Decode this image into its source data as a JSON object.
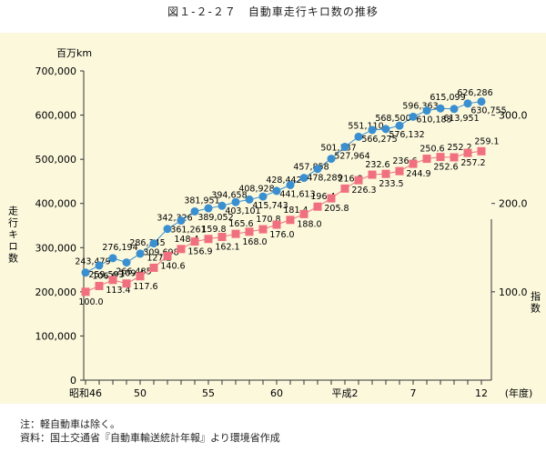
{
  "title": "図１-２-２７　自動車走行キロ数の推移",
  "notes": {
    "line1": "注：軽自動車は除く。",
    "line2": "資料：国土交通省『自動車輸送統計年報』より環境省作成"
  },
  "colors": {
    "background": "#fbf8dc",
    "series1": "#3a8fd0",
    "series2": "#f07080"
  },
  "chart_data": {
    "type": "line",
    "title": "図１-２-２７　自動車走行キロ数の推移",
    "x_tick_labels": [
      "昭和46",
      "50",
      "55",
      "60",
      "平成2",
      "7",
      "12"
    ],
    "x_tick_years": [
      1971,
      1975,
      1980,
      1985,
      1990,
      1995,
      2000
    ],
    "x_unit": "(年度)",
    "x": [
      1971,
      1972,
      1973,
      1974,
      1975,
      1976,
      1977,
      1978,
      1979,
      1980,
      1981,
      1982,
      1983,
      1984,
      1985,
      1986,
      1987,
      1988,
      1989,
      1990,
      1991,
      1992,
      1993,
      1994,
      1995,
      1996,
      1997,
      1998,
      1999,
      2000
    ],
    "y_left": {
      "unit": "百万km",
      "label": "走行キロ数",
      "range": [
        0,
        700000
      ],
      "ticks": [
        "0",
        "100,000",
        "200,000",
        "300,000",
        "400,000",
        "500,000",
        "600,000",
        "700,000"
      ]
    },
    "y_right": {
      "label": "指数",
      "range": [
        0,
        350
      ],
      "ticks": [
        "100.0",
        "200.0",
        "300.0"
      ]
    },
    "series": [
      {
        "axis": "left",
        "marker": "circle",
        "values": [
          243479,
          259593,
          276194,
          266485,
          286345,
          309698,
          342326,
          361261,
          381951,
          389052,
          394658,
          403101,
          408928,
          415743,
          428442,
          441613,
          457858,
          478289,
          501187,
          527964,
          551110,
          566275,
          568500,
          576132,
          596363,
          610183,
          615099,
          613951,
          626286,
          630755
        ],
        "labels": [
          "243,479",
          "259,593",
          "276,194",
          "266,485",
          "286,345",
          "309,698",
          "342,326",
          "361,261",
          "381,951",
          "389,052",
          "394,658",
          "403,101",
          "408,928",
          "415,743",
          "428,442",
          "441,613",
          "457,858",
          "478,289",
          "501,187",
          "527,964",
          "551,110",
          "566,275",
          "568,500",
          "576,132",
          "596,363",
          "610,183",
          "615,099",
          "613,951",
          "626,286",
          "630,755"
        ]
      },
      {
        "axis": "right",
        "marker": "square",
        "values": [
          100.0,
          106.6,
          113.4,
          109.4,
          117.6,
          127.2,
          140.6,
          148.4,
          156.9,
          159.8,
          162.1,
          165.6,
          168.0,
          170.8,
          176.0,
          181.4,
          188.0,
          196.4,
          205.8,
          216.8,
          226.3,
          232.6,
          233.5,
          236.6,
          244.9,
          250.6,
          252.6,
          252.2,
          257.2,
          259.1
        ],
        "labels": [
          "100.0",
          "106.6",
          "113.4",
          "109.4",
          "117.6",
          "127.2",
          "140.6",
          "148.4",
          "156.9",
          "159.8",
          "162.1",
          "165.6",
          "168.0",
          "170.8",
          "176.0",
          "181.4",
          "188.0",
          "196.4",
          "205.8",
          "216.8",
          "226.3",
          "232.6",
          "233.5",
          "236.6",
          "244.9",
          "250.6",
          "252.6",
          "252.2",
          "257.2",
          "259.1"
        ]
      }
    ]
  }
}
